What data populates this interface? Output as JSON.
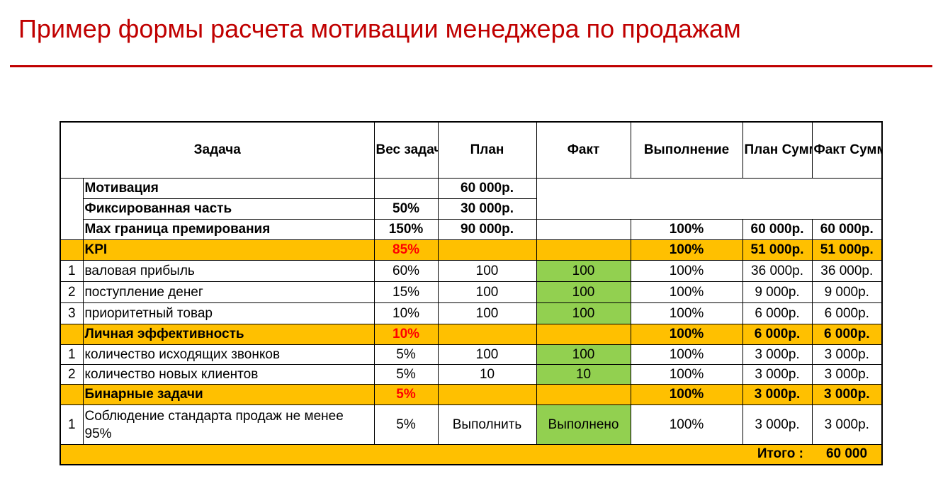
{
  "title": "Пример формы расчета мотивации менеджера по продажам",
  "headers": {
    "task": "Задача",
    "weight": "Вес задачи, %",
    "plan": "План",
    "fact": "Факт",
    "completion": "Выполнение",
    "plan_sum": "План Сумма з/п",
    "fact_sum": "Факт Сумма з/п"
  },
  "rows": {
    "motivation": {
      "label": "Мотивация",
      "plan": "60 000р."
    },
    "fixed": {
      "label": "Фиксированная часть",
      "weight": "50%",
      "plan": "30 000р."
    },
    "max_bonus": {
      "label": "Max граница премирования",
      "weight": "150%",
      "plan": "90 000р.",
      "completion": "100%",
      "plan_sum": "60 000р.",
      "fact_sum": "60 000р."
    },
    "kpi": {
      "label": "KPI",
      "weight": "85%",
      "completion": "100%",
      "plan_sum": "51 000р.",
      "fact_sum": "51 000р."
    },
    "kpi_items": [
      {
        "num": "1",
        "label": "валовая прибыль",
        "weight": "60%",
        "plan": "100",
        "fact": "100",
        "completion": "100%",
        "plan_sum": "36 000р.",
        "fact_sum": "36 000р."
      },
      {
        "num": "2",
        "label": "поступление денег",
        "weight": "15%",
        "plan": "100",
        "fact": "100",
        "completion": "100%",
        "plan_sum": "9 000р.",
        "fact_sum": "9 000р."
      },
      {
        "num": "3",
        "label": "приоритетный товар",
        "weight": "10%",
        "plan": "100",
        "fact": "100",
        "completion": "100%",
        "plan_sum": "6 000р.",
        "fact_sum": "6 000р."
      }
    ],
    "personal": {
      "label": "Личная эффективность",
      "weight": "10%",
      "completion": "100%",
      "plan_sum": "6 000р.",
      "fact_sum": "6 000р."
    },
    "personal_items": [
      {
        "num": "1",
        "label": "количество исходящих звонков",
        "weight": "5%",
        "plan": "100",
        "fact": "100",
        "completion": "100%",
        "plan_sum": "3 000р.",
        "fact_sum": "3 000р."
      },
      {
        "num": "2",
        "label": "количество новых клиентов",
        "weight": "5%",
        "plan": "10",
        "fact": "10",
        "completion": "100%",
        "plan_sum": "3 000р.",
        "fact_sum": "3 000р."
      }
    ],
    "binary": {
      "label": "Бинарные задачи",
      "weight": "5%",
      "completion": "100%",
      "plan_sum": "3 000р.",
      "fact_sum": "3 000р."
    },
    "binary_items": [
      {
        "num": "1",
        "label": "Соблюдение стандарта продаж не менее 95%",
        "weight": "5%",
        "plan": "Выполнить",
        "fact": "Выполнено",
        "completion": "100%",
        "plan_sum": "3 000р.",
        "fact_sum": "3 000р."
      }
    ],
    "total": {
      "label": "Итого :",
      "value": "60 000"
    }
  },
  "colors": {
    "title_red": "#c00000",
    "highlight_orange": "#ffc000",
    "fact_green": "#92d050",
    "weight_red": "#ff0000"
  }
}
